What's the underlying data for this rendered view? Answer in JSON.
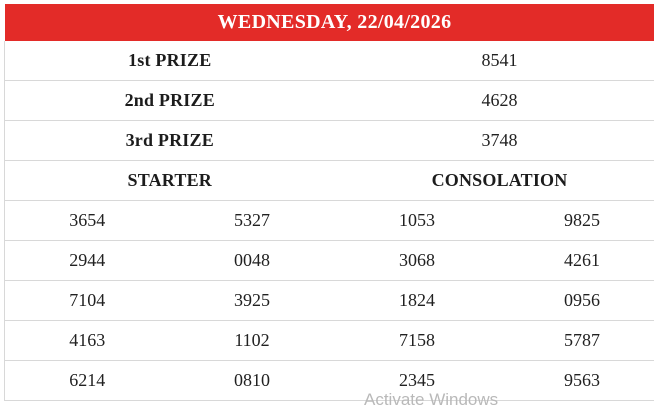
{
  "header": {
    "title": "WEDNESDAY, 22/04/2026"
  },
  "prizes": [
    {
      "label": "1st PRIZE",
      "value": "8541"
    },
    {
      "label": "2nd PRIZE",
      "value": "4628"
    },
    {
      "label": "3rd PRIZE",
      "value": "3748"
    }
  ],
  "sections": {
    "starter_label": "STARTER",
    "consolation_label": "CONSOLATION"
  },
  "numbers": [
    [
      "3654",
      "5327",
      "1053",
      "9825"
    ],
    [
      "2944",
      "0048",
      "3068",
      "4261"
    ],
    [
      "7104",
      "3925",
      "1824",
      "0956"
    ],
    [
      "4163",
      "1102",
      "7158",
      "5787"
    ],
    [
      "6214",
      "0810",
      "2345",
      "9563"
    ]
  ],
  "watermark": {
    "text": "Activate Windows"
  },
  "colors": {
    "header_bg": "#e32b28",
    "header_text": "#ffffff",
    "border": "#d8d8d8",
    "text": "#212121"
  }
}
